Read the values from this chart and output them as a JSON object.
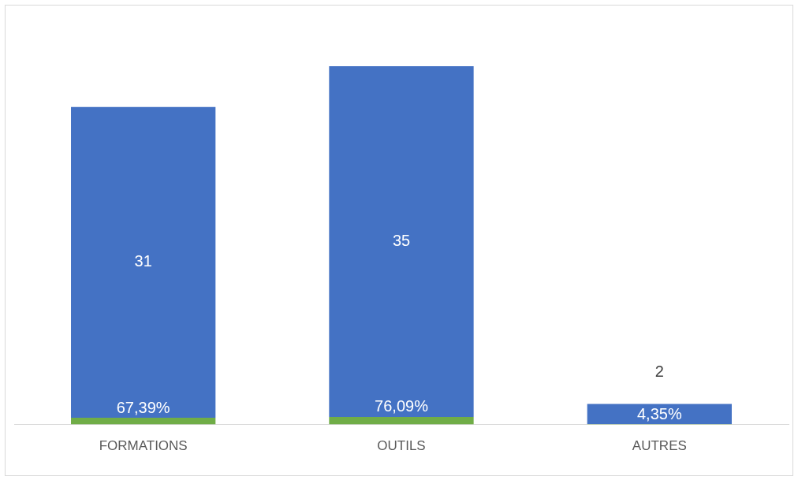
{
  "chart_data": {
    "type": "bar",
    "stacked": true,
    "categories": [
      "FORMATIONS",
      "OUTILS",
      "AUTRES"
    ],
    "series": [
      {
        "color": "#70ad47",
        "values": [
          0.6739,
          0.7609,
          0.0435
        ],
        "value_labels": [
          "67,39%",
          "76,09%",
          "4,35%"
        ]
      },
      {
        "color": "#4472c4",
        "values": [
          31,
          35,
          2
        ],
        "value_labels": [
          "31",
          "35",
          "2"
        ]
      }
    ],
    "grid": false,
    "legend": false,
    "tick_labels": "x"
  }
}
